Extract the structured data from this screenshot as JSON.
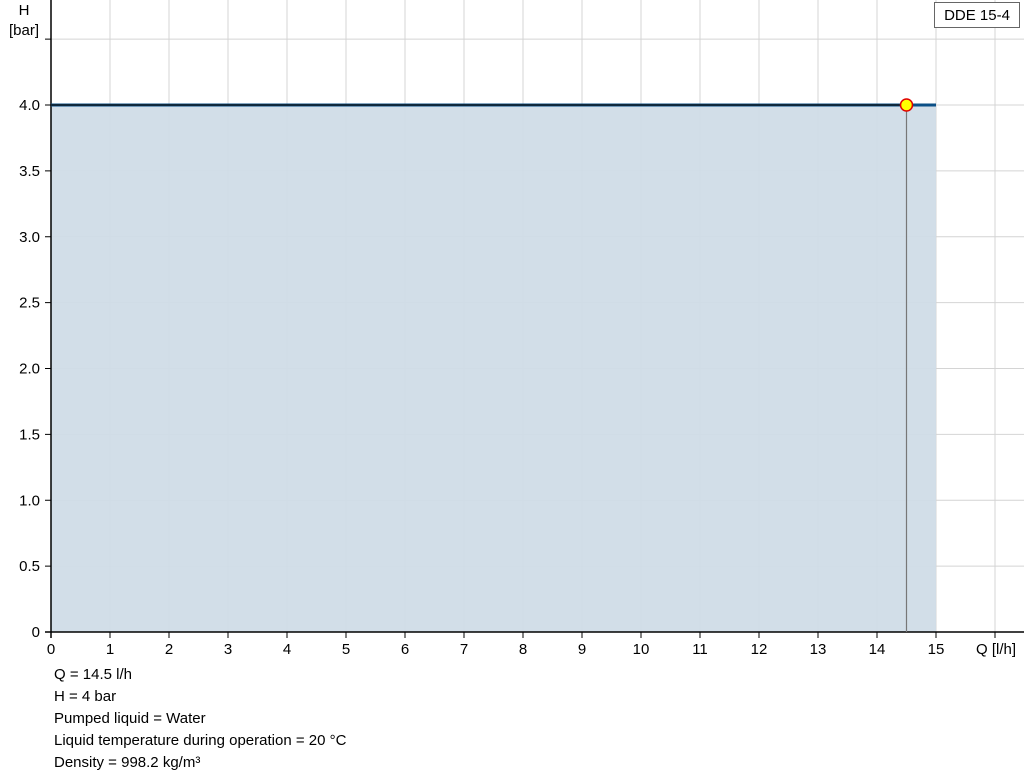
{
  "chart_data": {
    "type": "area",
    "title": "",
    "ylabel_symbol": "H",
    "ylabel_unit": "[bar]",
    "xlabel": "Q [l/h]",
    "xlim": [
      0,
      16.37
    ],
    "ylim": [
      0,
      4.8
    ],
    "x_ticks": [
      0,
      1,
      2,
      3,
      4,
      5,
      6,
      7,
      8,
      9,
      10,
      11,
      12,
      13,
      14,
      15
    ],
    "y_ticks": [
      "0",
      "0.5",
      "1.0",
      "1.5",
      "2.0",
      "2.5",
      "3.0",
      "3.5",
      "4.0"
    ],
    "grid": true,
    "legend": {
      "label": "DDE 15-4",
      "placement": "top-right"
    },
    "series": [
      {
        "name": "DDE 15-4",
        "x": [
          0,
          15
        ],
        "y": [
          4.0,
          4.0
        ],
        "color": "#0b4f86",
        "fill": "#d0dce7"
      }
    ],
    "operating_point": {
      "x": 14.5,
      "y": 4.0,
      "fill": "#ffff00",
      "stroke": "#e00000"
    }
  },
  "info": {
    "q": "Q = 14.5 l/h",
    "h": "H = 4 bar",
    "liquid": "Pumped liquid = Water",
    "temperature": "Liquid temperature during operation = 20 °C",
    "density": "Density = 998.2 kg/m³"
  }
}
